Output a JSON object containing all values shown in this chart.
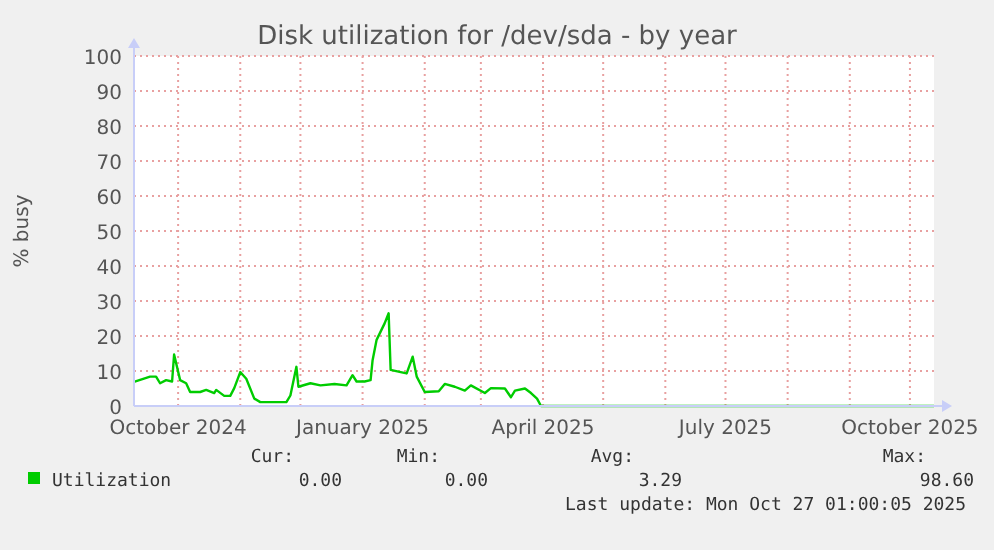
{
  "chart_data": {
    "type": "line",
    "title": "Disk utilization for /dev/sda - by year",
    "ylabel": "% busy",
    "x": [
      "2024-09-09",
      "2024-09-17",
      "2024-09-20",
      "2024-09-22",
      "2024-09-25",
      "2024-09-28",
      "2024-09-29",
      "2024-10-02",
      "2024-10-05",
      "2024-10-07",
      "2024-10-12",
      "2024-10-15",
      "2024-10-19",
      "2024-10-20",
      "2024-10-24",
      "2024-10-27",
      "2024-10-29",
      "2024-11-01",
      "2024-11-04",
      "2024-11-08",
      "2024-11-11",
      "2024-11-24",
      "2024-11-26",
      "2024-11-29",
      "2024-11-30",
      "2024-12-06",
      "2024-12-11",
      "2024-12-18",
      "2024-12-24",
      "2024-12-27",
      "2024-12-29",
      "2025-01-02",
      "2025-01-05",
      "2025-01-06",
      "2025-01-08",
      "2025-01-12",
      "2025-01-14",
      "2025-01-15",
      "2025-01-20",
      "2025-01-23",
      "2025-01-26",
      "2025-01-28",
      "2025-02-01",
      "2025-02-08",
      "2025-02-11",
      "2025-02-16",
      "2025-02-21",
      "2025-02-24",
      "2025-03-03",
      "2025-03-06",
      "2025-03-13",
      "2025-03-16",
      "2025-03-18",
      "2025-03-23",
      "2025-03-26",
      "2025-03-29",
      "2025-03-31",
      "2025-04-02",
      "2025-10-13"
    ],
    "series": [
      {
        "name": "Utilization",
        "color": "#00cc00",
        "values": [
          6.9,
          8.4,
          8.4,
          6.5,
          7.4,
          7,
          14.7,
          7.4,
          6.5,
          4,
          4,
          4.6,
          3.7,
          4.6,
          2.9,
          2.9,
          5.1,
          9.7,
          7.8,
          2.1,
          1.1,
          1.1,
          3,
          11.2,
          5.5,
          6.5,
          5.9,
          6.3,
          5.9,
          8.8,
          7,
          7,
          7.4,
          13.1,
          18.9,
          23.6,
          26.5,
          10.3,
          9.7,
          9.3,
          14.1,
          8.4,
          4,
          4.2,
          6.3,
          5.5,
          4.4,
          5.9,
          3.7,
          5.1,
          5,
          2.5,
          4.4,
          5,
          3.7,
          2.1,
          0,
          0,
          0
        ]
      }
    ],
    "xlim": [
      "2024-09-09",
      "2025-10-13"
    ],
    "xticks": [
      {
        "value": "2024-10-01",
        "label": "October 2024"
      },
      {
        "value": "2024-11-01",
        "label": null
      },
      {
        "value": "2024-12-01",
        "label": null
      },
      {
        "value": "2025-01-01",
        "label": "January 2025"
      },
      {
        "value": "2025-02-01",
        "label": null
      },
      {
        "value": "2025-03-01",
        "label": null
      },
      {
        "value": "2025-04-01",
        "label": "April 2025"
      },
      {
        "value": "2025-05-01",
        "label": null
      },
      {
        "value": "2025-06-01",
        "label": null
      },
      {
        "value": "2025-07-01",
        "label": "July 2025"
      },
      {
        "value": "2025-08-01",
        "label": null
      },
      {
        "value": "2025-09-01",
        "label": null
      },
      {
        "value": "2025-10-01",
        "label": "October 2025"
      }
    ],
    "ylim": [
      0,
      100
    ],
    "yticks": [
      0,
      10,
      20,
      30,
      40,
      50,
      60,
      70,
      80,
      90,
      100
    ],
    "grid": true,
    "legend": "bottom",
    "annotations": [
      "Cur:",
      "Min:",
      "Avg:",
      "Max:",
      "0.00",
      "0.00",
      "3.29",
      "98.60",
      "Last update: Mon Oct 27 01:00:05 2025"
    ]
  }
}
